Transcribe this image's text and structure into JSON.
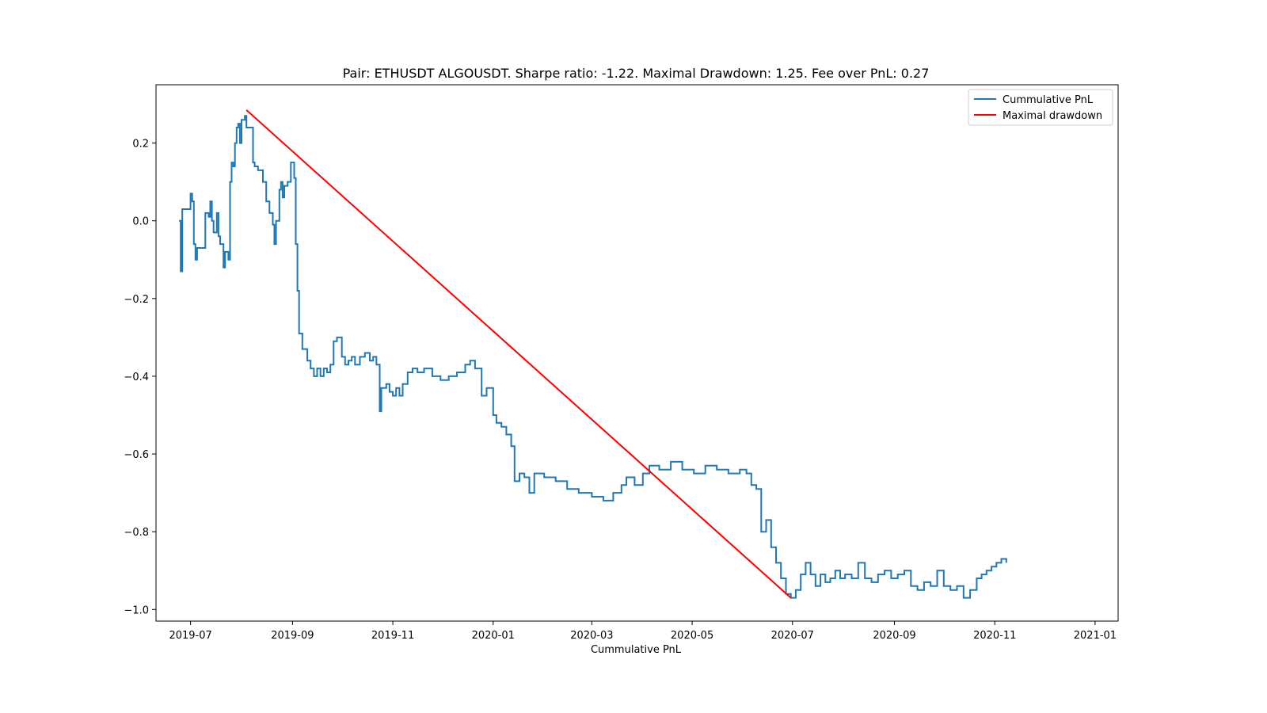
{
  "chart_data": {
    "type": "line",
    "title": "Pair: ETHUSDT ALGOUSDT. Sharpe ratio: -1.22. Maximal Drawdown: 1.25. Fee over PnL: 0.27",
    "xlabel": "Cummulative PnL",
    "ylabel": "",
    "xlim": [
      "2019-06-10",
      "2021-01-15"
    ],
    "ylim": [
      -1.03,
      0.35
    ],
    "x_ticks": [
      "2019-07",
      "2019-09",
      "2019-11",
      "2020-01",
      "2020-03",
      "2020-05",
      "2020-07",
      "2020-09",
      "2020-11",
      "2021-01"
    ],
    "y_ticks": [
      "0.2",
      "0.0",
      "−0.2",
      "−0.4",
      "−0.6",
      "−0.8",
      "−1.0"
    ],
    "y_tick_values": [
      0.2,
      0.0,
      -0.2,
      -0.4,
      -0.6,
      -0.8,
      -1.0
    ],
    "grid": false,
    "legend_position": "top-right",
    "series": [
      {
        "name": "Cummulative PnL",
        "color": "#1f77b4",
        "style": "step",
        "points": [
          [
            "2019-06-24",
            0.0
          ],
          [
            "2019-06-25",
            -0.13
          ],
          [
            "2019-06-26",
            0.03
          ],
          [
            "2019-06-30",
            0.03
          ],
          [
            "2019-07-01",
            0.07
          ],
          [
            "2019-07-02",
            0.05
          ],
          [
            "2019-07-03",
            -0.06
          ],
          [
            "2019-07-04",
            -0.1
          ],
          [
            "2019-07-05",
            -0.07
          ],
          [
            "2019-07-09",
            -0.07
          ],
          [
            "2019-07-10",
            0.02
          ],
          [
            "2019-07-12",
            0.01
          ],
          [
            "2019-07-13",
            0.05
          ],
          [
            "2019-07-14",
            0.0
          ],
          [
            "2019-07-15",
            -0.03
          ],
          [
            "2019-07-17",
            0.02
          ],
          [
            "2019-07-18",
            -0.04
          ],
          [
            "2019-07-19",
            -0.06
          ],
          [
            "2019-07-21",
            -0.12
          ],
          [
            "2019-07-22",
            -0.08
          ],
          [
            "2019-07-24",
            -0.1
          ],
          [
            "2019-07-25",
            0.1
          ],
          [
            "2019-07-26",
            0.15
          ],
          [
            "2019-07-27",
            0.14
          ],
          [
            "2019-07-28",
            0.2
          ],
          [
            "2019-07-29",
            0.24
          ],
          [
            "2019-07-30",
            0.25
          ],
          [
            "2019-07-31",
            0.2
          ],
          [
            "2019-08-01",
            0.26
          ],
          [
            "2019-08-03",
            0.27
          ],
          [
            "2019-08-04",
            0.24
          ],
          [
            "2019-08-08",
            0.15
          ],
          [
            "2019-08-09",
            0.14
          ],
          [
            "2019-08-10",
            0.14
          ],
          [
            "2019-08-11",
            0.13
          ],
          [
            "2019-08-13",
            0.13
          ],
          [
            "2019-08-14",
            0.1
          ],
          [
            "2019-08-16",
            0.05
          ],
          [
            "2019-08-18",
            0.02
          ],
          [
            "2019-08-20",
            -0.01
          ],
          [
            "2019-08-21",
            -0.06
          ],
          [
            "2019-08-22",
            0.0
          ],
          [
            "2019-08-24",
            0.08
          ],
          [
            "2019-08-25",
            0.1
          ],
          [
            "2019-08-26",
            0.06
          ],
          [
            "2019-08-27",
            0.09
          ],
          [
            "2019-08-29",
            0.1
          ],
          [
            "2019-08-31",
            0.15
          ],
          [
            "2019-09-02",
            0.11
          ],
          [
            "2019-09-03",
            -0.06
          ],
          [
            "2019-09-04",
            -0.18
          ],
          [
            "2019-09-05",
            -0.29
          ],
          [
            "2019-09-07",
            -0.33
          ],
          [
            "2019-09-10",
            -0.36
          ],
          [
            "2019-09-12",
            -0.38
          ],
          [
            "2019-09-14",
            -0.4
          ],
          [
            "2019-09-16",
            -0.38
          ],
          [
            "2019-09-18",
            -0.4
          ],
          [
            "2019-09-20",
            -0.38
          ],
          [
            "2019-09-22",
            -0.39
          ],
          [
            "2019-09-24",
            -0.37
          ],
          [
            "2019-09-26",
            -0.31
          ],
          [
            "2019-09-28",
            -0.3
          ],
          [
            "2019-10-01",
            -0.35
          ],
          [
            "2019-10-03",
            -0.37
          ],
          [
            "2019-10-05",
            -0.36
          ],
          [
            "2019-10-07",
            -0.35
          ],
          [
            "2019-10-09",
            -0.37
          ],
          [
            "2019-10-12",
            -0.35
          ],
          [
            "2019-10-15",
            -0.34
          ],
          [
            "2019-10-18",
            -0.36
          ],
          [
            "2019-10-20",
            -0.35
          ],
          [
            "2019-10-22",
            -0.37
          ],
          [
            "2019-10-24",
            -0.49
          ],
          [
            "2019-10-25",
            -0.43
          ],
          [
            "2019-10-28",
            -0.42
          ],
          [
            "2019-10-30",
            -0.44
          ],
          [
            "2019-11-01",
            -0.45
          ],
          [
            "2019-11-03",
            -0.43
          ],
          [
            "2019-11-05",
            -0.45
          ],
          [
            "2019-11-07",
            -0.42
          ],
          [
            "2019-11-10",
            -0.39
          ],
          [
            "2019-11-13",
            -0.38
          ],
          [
            "2019-11-16",
            -0.39
          ],
          [
            "2019-11-20",
            -0.38
          ],
          [
            "2019-11-25",
            -0.4
          ],
          [
            "2019-11-30",
            -0.41
          ],
          [
            "2019-12-05",
            -0.4
          ],
          [
            "2019-12-10",
            -0.39
          ],
          [
            "2019-12-15",
            -0.37
          ],
          [
            "2019-12-18",
            -0.36
          ],
          [
            "2019-12-21",
            -0.38
          ],
          [
            "2019-12-25",
            -0.45
          ],
          [
            "2019-12-28",
            -0.43
          ],
          [
            "2020-01-01",
            -0.5
          ],
          [
            "2020-01-03",
            -0.52
          ],
          [
            "2020-01-06",
            -0.53
          ],
          [
            "2020-01-09",
            -0.55
          ],
          [
            "2020-01-12",
            -0.58
          ],
          [
            "2020-01-14",
            -0.67
          ],
          [
            "2020-01-17",
            -0.65
          ],
          [
            "2020-01-20",
            -0.66
          ],
          [
            "2020-01-23",
            -0.7
          ],
          [
            "2020-01-26",
            -0.65
          ],
          [
            "2020-02-01",
            -0.66
          ],
          [
            "2020-02-08",
            -0.67
          ],
          [
            "2020-02-15",
            -0.69
          ],
          [
            "2020-02-22",
            -0.7
          ],
          [
            "2020-03-01",
            -0.71
          ],
          [
            "2020-03-08",
            -0.72
          ],
          [
            "2020-03-14",
            -0.7
          ],
          [
            "2020-03-19",
            -0.68
          ],
          [
            "2020-03-22",
            -0.66
          ],
          [
            "2020-03-27",
            -0.68
          ],
          [
            "2020-04-01",
            -0.65
          ],
          [
            "2020-04-05",
            -0.63
          ],
          [
            "2020-04-11",
            -0.64
          ],
          [
            "2020-04-18",
            -0.62
          ],
          [
            "2020-04-25",
            -0.64
          ],
          [
            "2020-05-02",
            -0.65
          ],
          [
            "2020-05-09",
            -0.63
          ],
          [
            "2020-05-16",
            -0.64
          ],
          [
            "2020-05-23",
            -0.65
          ],
          [
            "2020-05-30",
            -0.64
          ],
          [
            "2020-06-03",
            -0.65
          ],
          [
            "2020-06-06",
            -0.68
          ],
          [
            "2020-06-09",
            -0.69
          ],
          [
            "2020-06-12",
            -0.8
          ],
          [
            "2020-06-15",
            -0.77
          ],
          [
            "2020-06-18",
            -0.84
          ],
          [
            "2020-06-21",
            -0.88
          ],
          [
            "2020-06-24",
            -0.92
          ],
          [
            "2020-06-27",
            -0.96
          ],
          [
            "2020-06-30",
            -0.97
          ],
          [
            "2020-07-03",
            -0.95
          ],
          [
            "2020-07-06",
            -0.91
          ],
          [
            "2020-07-09",
            -0.88
          ],
          [
            "2020-07-12",
            -0.91
          ],
          [
            "2020-07-15",
            -0.94
          ],
          [
            "2020-07-18",
            -0.91
          ],
          [
            "2020-07-21",
            -0.93
          ],
          [
            "2020-07-24",
            -0.92
          ],
          [
            "2020-07-27",
            -0.9
          ],
          [
            "2020-07-30",
            -0.92
          ],
          [
            "2020-08-02",
            -0.91
          ],
          [
            "2020-08-06",
            -0.92
          ],
          [
            "2020-08-10",
            -0.88
          ],
          [
            "2020-08-14",
            -0.92
          ],
          [
            "2020-08-18",
            -0.93
          ],
          [
            "2020-08-22",
            -0.91
          ],
          [
            "2020-08-26",
            -0.9
          ],
          [
            "2020-08-30",
            -0.92
          ],
          [
            "2020-09-03",
            -0.91
          ],
          [
            "2020-09-07",
            -0.9
          ],
          [
            "2020-09-11",
            -0.94
          ],
          [
            "2020-09-15",
            -0.95
          ],
          [
            "2020-09-19",
            -0.93
          ],
          [
            "2020-09-23",
            -0.94
          ],
          [
            "2020-09-27",
            -0.9
          ],
          [
            "2020-10-01",
            -0.94
          ],
          [
            "2020-10-05",
            -0.95
          ],
          [
            "2020-10-09",
            -0.94
          ],
          [
            "2020-10-13",
            -0.97
          ],
          [
            "2020-10-17",
            -0.95
          ],
          [
            "2020-10-21",
            -0.92
          ],
          [
            "2020-10-24",
            -0.91
          ],
          [
            "2020-10-27",
            -0.9
          ],
          [
            "2020-10-30",
            -0.89
          ],
          [
            "2020-11-02",
            -0.88
          ],
          [
            "2020-11-05",
            -0.87
          ],
          [
            "2020-11-08",
            -0.88
          ]
        ]
      },
      {
        "name": "Maximal drawdown",
        "color": "#ff0000",
        "style": "line",
        "points": [
          [
            "2019-08-04",
            0.285
          ],
          [
            "2020-06-30",
            -0.97
          ]
        ]
      }
    ]
  }
}
